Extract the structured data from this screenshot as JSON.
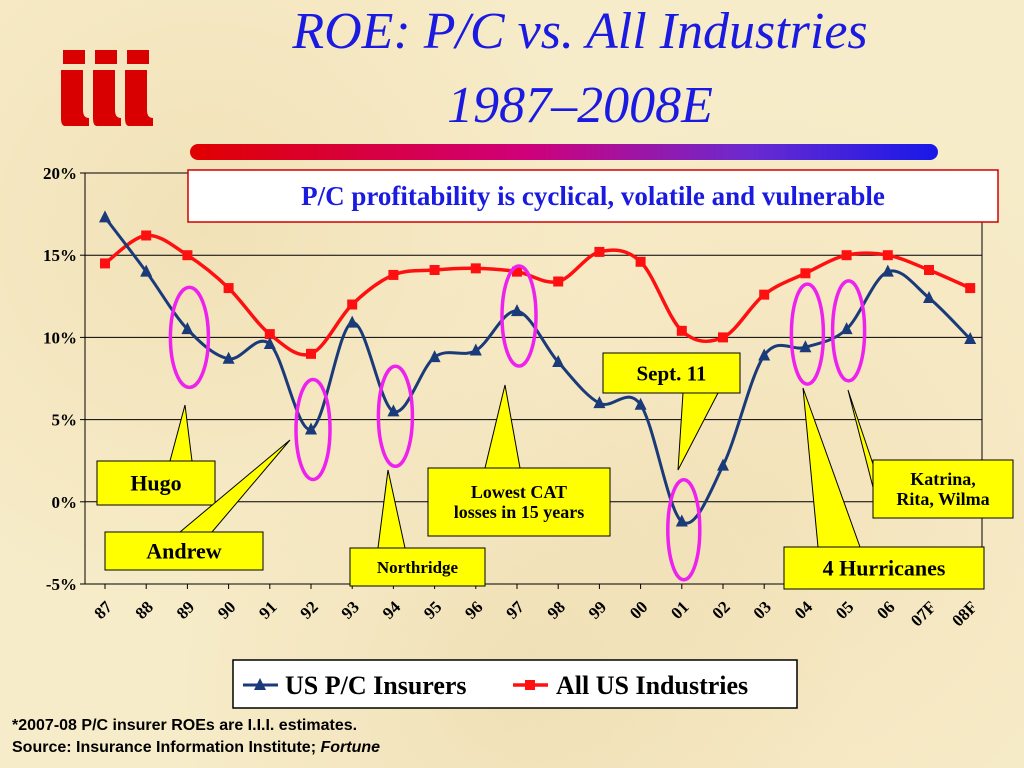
{
  "slide": {
    "title_line1": "ROE: P/C vs. All Industries",
    "title_line2": "1987–2008E",
    "logo_text": "iii",
    "footnote_1": "*2007-08 P/C insurer ROEs are I.I.I. estimates.",
    "footnote_2_prefix": "Source:  Insurance Information Institute; ",
    "footnote_2_italic": "Fortune"
  },
  "chart_data": {
    "type": "line",
    "categories": [
      "87",
      "88",
      "89",
      "90",
      "91",
      "92",
      "93",
      "94",
      "95",
      "96",
      "97",
      "98",
      "99",
      "00",
      "01",
      "02",
      "03",
      "04",
      "05",
      "06",
      "07F",
      "08F"
    ],
    "ylim": [
      -5,
      20
    ],
    "yticks": [
      -5,
      0,
      5,
      10,
      15,
      20
    ],
    "ytick_labels": [
      "-5%",
      "0%",
      "5%",
      "10%",
      "15%",
      "20%"
    ],
    "grid": true,
    "legend_position": "bottom",
    "series": [
      {
        "name": "US P/C Insurers",
        "color": "#1a3a7a",
        "marker": "triangle",
        "values": [
          17.3,
          14.0,
          10.5,
          8.7,
          9.6,
          4.4,
          10.9,
          5.5,
          8.8,
          9.2,
          11.6,
          8.5,
          6.0,
          5.9,
          -1.2,
          2.2,
          8.9,
          9.4,
          10.5,
          14.0,
          12.4,
          9.9
        ]
      },
      {
        "name": "All US Industries",
        "color": "#ff1010",
        "marker": "square",
        "values": [
          14.5,
          16.2,
          15.0,
          13.0,
          10.2,
          9.0,
          12.0,
          13.8,
          14.1,
          14.2,
          14.0,
          13.4,
          15.2,
          14.6,
          10.4,
          10.0,
          12.6,
          13.9,
          15.0,
          15.0,
          14.1,
          13.0
        ]
      }
    ],
    "banner": "P/C profitability is cyclical, volatile and vulnerable",
    "colors": {
      "highlight_circle": "#ee22ee",
      "callout_fill": "#ffff00",
      "banner_border": "#d00000",
      "banner_text": "#1a1ae0"
    },
    "annotations": [
      {
        "label": "Hugo",
        "year": "89"
      },
      {
        "label": "Andrew",
        "year": "92"
      },
      {
        "label": "Northridge",
        "year": "94"
      },
      {
        "label": "Lowest CAT losses in 15 years",
        "line1": "Lowest CAT",
        "line2": "losses in 15 years",
        "year": "97"
      },
      {
        "label": "Sept. 11",
        "year": "01"
      },
      {
        "label": "4 Hurricanes",
        "year": "04"
      },
      {
        "label": "Katrina, Rita, Wilma",
        "line1": "Katrina,",
        "line2": "Rita, Wilma",
        "year": "05"
      }
    ]
  }
}
